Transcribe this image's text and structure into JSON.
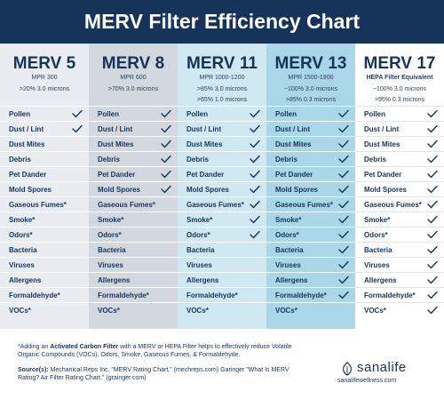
{
  "title": "MERV Filter Efficiency Chart",
  "columns": [
    {
      "rating": "MERV 5",
      "sub1": "MPR 300",
      "sub2": ">20% 3.0 microns",
      "sub3": ""
    },
    {
      "rating": "MERV 8",
      "sub1": "MPR 600",
      "sub2": ">70% 3.0 microns",
      "sub3": ""
    },
    {
      "rating": "MERV 11",
      "sub1": "MPR 1000-1200",
      "sub2": ">85% 3.0 microns",
      "sub3": ">65% 1.0 microns"
    },
    {
      "rating": "MERV 13",
      "sub1": "MPR 1500-1900",
      "sub2": "~100% 3.0 microns",
      "sub3": ">85% 0.3 microns"
    },
    {
      "rating": "MERV 17",
      "sub1": "HEPA Filter Equivalent",
      "sub2": "~100% 3.0 microns",
      "sub3": ">95% 0.3 microns"
    }
  ],
  "rows": [
    "Pollen",
    "Dust / Lint",
    "Dust Mites",
    "Debris",
    "Pet Dander",
    "Mold Spores",
    "Gaseous Fumes*",
    "Smoke*",
    "Odors*",
    "Bacteria",
    "Viruses",
    "Allergens",
    "Formaldehyde*",
    "VOCs*"
  ],
  "checks": [
    [
      1,
      1,
      0,
      0,
      0,
      0,
      0,
      0,
      0,
      0,
      0,
      0,
      0,
      0
    ],
    [
      1,
      1,
      1,
      1,
      1,
      1,
      0,
      0,
      0,
      0,
      0,
      0,
      0,
      0
    ],
    [
      1,
      1,
      1,
      1,
      1,
      1,
      1,
      1,
      1,
      0,
      0,
      0,
      0,
      0
    ],
    [
      1,
      1,
      1,
      1,
      1,
      1,
      1,
      1,
      1,
      1,
      1,
      1,
      1,
      0
    ],
    [
      1,
      1,
      1,
      1,
      1,
      1,
      1,
      1,
      1,
      1,
      1,
      1,
      1,
      1
    ]
  ],
  "note": {
    "prefix": "*Adding an ",
    "bold": "Activated Carbon Filter",
    "suffix": " with a MERV or HEPA Filter helps to effectively reduce Volatile Organic Compounds (VOCs), Odors, Smoke, Gaseous Fumes, & Formaldehyde."
  },
  "source": {
    "label": "Source(s):",
    "text": " Mechanical Reps Inc. \"MERV Rating Chart,\" (mechreps.com) Garinger \"What Is MERV Rating? Air Filter Rating Chart,\" (grainger.com)"
  },
  "logo": {
    "name": "sanalife",
    "url": "sanalifewellness.com"
  },
  "colors": {
    "navy": "#16335a",
    "col1": "#e9edf2",
    "col2": "#d3d8df",
    "col3": "#cfe8f1",
    "col4": "#a9d7e7"
  }
}
